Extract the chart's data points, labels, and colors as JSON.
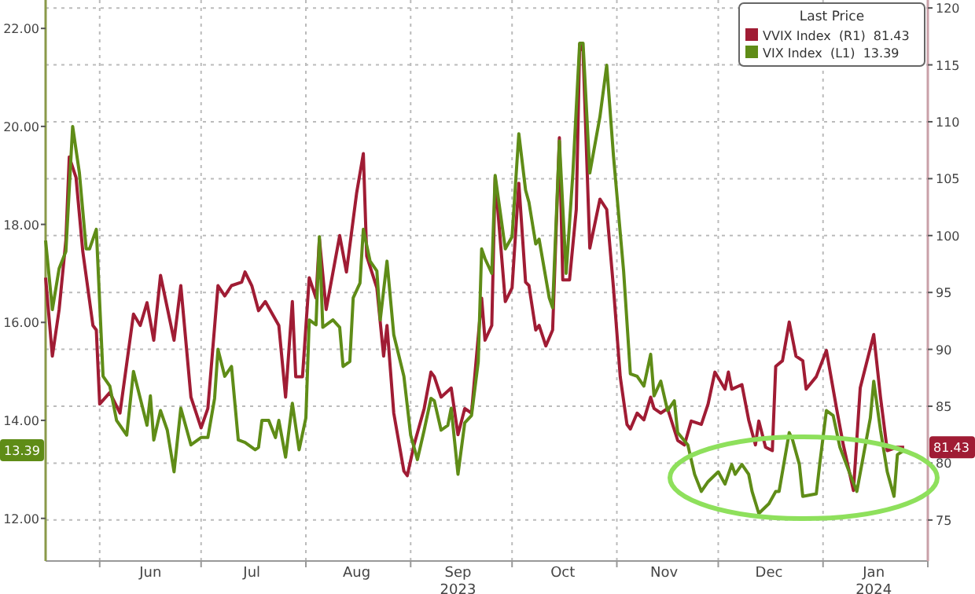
{
  "chart_data": {
    "type": "line",
    "legend_title": "Last Price",
    "legend": "top right",
    "grid": true,
    "xlim": [
      "2023-05-16",
      "2024-02-01"
    ],
    "xticks": [
      {
        "value": "2023-06-01",
        "label": null
      },
      {
        "value": "2023-06-16",
        "label": "Jun"
      },
      {
        "value": "2023-07-01",
        "label": null
      },
      {
        "value": "2023-07-16",
        "label": "Jul"
      },
      {
        "value": "2023-08-01",
        "label": null
      },
      {
        "value": "2023-08-16",
        "label": "Aug"
      },
      {
        "value": "2023-09-01",
        "label": null
      },
      {
        "value": "2023-09-15",
        "label": "Sep\n2023"
      },
      {
        "value": "2023-10-01",
        "label": null
      },
      {
        "value": "2023-10-16",
        "label": "Oct"
      },
      {
        "value": "2023-11-01",
        "label": null
      },
      {
        "value": "2023-11-15",
        "label": "Nov"
      },
      {
        "value": "2023-12-01",
        "label": null
      },
      {
        "value": "2023-12-16",
        "label": "Dec"
      },
      {
        "value": "2024-01-01",
        "label": null
      },
      {
        "value": "2024-01-16",
        "label": "Jan\n2024"
      },
      {
        "value": "2024-02-01",
        "label": null
      }
    ],
    "ylim": [
      11.13,
      22.58
    ],
    "yticks": [
      {
        "value": 12,
        "label": "12.00"
      },
      {
        "value": 14,
        "label": "14.00"
      },
      {
        "value": 16,
        "label": "16.00"
      },
      {
        "value": 18,
        "label": "18.00"
      },
      {
        "value": 20,
        "label": "20.00"
      },
      {
        "value": 22,
        "label": "22.00"
      }
    ],
    "y2lim": [
      71.4,
      120.7
    ],
    "y2ticks": [
      75,
      80,
      85,
      90,
      95,
      100,
      105,
      110,
      115,
      120
    ],
    "annotations": [
      "13.39",
      "81.43"
    ],
    "series": [
      {
        "name": "VVIX Index  (R1)  81.43",
        "color": "#a01c34",
        "axis": "y2",
        "x": [
          "2023-05-16",
          "2023-05-18",
          "2023-05-20",
          "2023-05-22",
          "2023-05-23",
          "2023-05-25",
          "2023-05-27",
          "2023-05-30",
          "2023-05-31",
          "2023-06-01",
          "2023-06-04",
          "2023-06-07",
          "2023-06-11",
          "2023-06-13",
          "2023-06-15",
          "2023-06-17",
          "2023-06-19",
          "2023-06-23",
          "2023-06-25",
          "2023-06-28",
          "2023-07-01",
          "2023-07-03",
          "2023-07-06",
          "2023-07-08",
          "2023-07-10",
          "2023-07-13",
          "2023-07-14",
          "2023-07-16",
          "2023-07-18",
          "2023-07-20",
          "2023-07-24",
          "2023-07-26",
          "2023-07-28",
          "2023-07-29",
          "2023-07-31",
          "2023-08-02",
          "2023-08-04",
          "2023-08-05",
          "2023-08-07",
          "2023-08-11",
          "2023-08-13",
          "2023-08-16",
          "2023-08-18",
          "2023-08-19",
          "2023-08-22",
          "2023-08-24",
          "2023-08-25",
          "2023-08-27",
          "2023-08-30",
          "2023-08-31",
          "2023-09-02",
          "2023-09-05",
          "2023-09-07",
          "2023-09-08",
          "2023-09-10",
          "2023-09-13",
          "2023-09-15",
          "2023-09-17",
          "2023-09-19",
          "2023-09-22",
          "2023-09-23",
          "2023-09-25",
          "2023-09-26",
          "2023-09-29",
          "2023-10-01",
          "2023-10-03",
          "2023-10-05",
          "2023-10-06",
          "2023-10-08",
          "2023-10-09",
          "2023-10-11",
          "2023-10-13",
          "2023-10-15",
          "2023-10-16",
          "2023-10-18",
          "2023-10-20",
          "2023-10-21",
          "2023-10-22",
          "2023-10-24",
          "2023-10-27",
          "2023-10-29",
          "2023-10-31",
          "2023-11-02",
          "2023-11-04",
          "2023-11-05",
          "2023-11-07",
          "2023-11-09",
          "2023-11-11",
          "2023-11-12",
          "2023-11-14",
          "2023-11-16",
          "2023-11-19",
          "2023-11-21",
          "2023-11-23",
          "2023-11-26",
          "2023-11-28",
          "2023-11-30",
          "2023-12-03",
          "2023-12-04",
          "2023-12-05",
          "2023-12-08",
          "2023-12-10",
          "2023-12-12",
          "2023-12-13",
          "2023-12-15",
          "2023-12-17",
          "2023-12-18",
          "2023-12-20",
          "2023-12-22",
          "2023-12-24",
          "2023-12-26",
          "2023-12-27",
          "2023-12-30",
          "2024-01-02",
          "2024-01-05",
          "2024-01-07",
          "2024-01-10",
          "2024-01-12",
          "2024-01-16",
          "2024-01-18",
          "2024-01-20",
          "2024-01-23",
          "2024-01-25"
        ],
        "values": [
          96.3,
          89.4,
          93.5,
          99.6,
          106.9,
          105.1,
          98.6,
          92.1,
          91.7,
          85.2,
          86.2,
          84.4,
          93.1,
          92.1,
          94.1,
          90.8,
          96.5,
          90.8,
          95.6,
          85.8,
          83.1,
          84.8,
          95.6,
          94.7,
          95.6,
          95.9,
          96.8,
          95.6,
          93.4,
          94.2,
          92.1,
          85.8,
          94.2,
          87.6,
          87.6,
          96.3,
          94.5,
          99.7,
          93.5,
          100.0,
          96.8,
          103.7,
          107.2,
          98.2,
          95.4,
          89.4,
          92.1,
          84.4,
          79.3,
          78.9,
          81.6,
          84.8,
          88.0,
          87.6,
          85.8,
          86.6,
          82.5,
          84.8,
          84.4,
          94.5,
          90.8,
          92.1,
          105.1,
          94.2,
          95.4,
          104.6,
          95.9,
          95.6,
          91.7,
          92.1,
          90.3,
          91.7,
          108.6,
          96.1,
          96.1,
          102.3,
          116.8,
          116.2,
          98.9,
          103.2,
          102.3,
          95.4,
          87.6,
          83.4,
          83.0,
          84.4,
          83.8,
          85.8,
          84.8,
          84.4,
          84.8,
          82.0,
          81.6,
          83.7,
          83.4,
          85.2,
          88.0,
          86.5,
          88.0,
          86.5,
          86.9,
          83.8,
          81.6,
          83.7,
          81.4,
          81.1,
          88.5,
          89.0,
          92.4,
          89.4,
          89.0,
          86.5,
          87.6,
          89.9,
          84.8,
          81.6,
          77.6,
          86.6,
          91.3,
          85.8,
          81.1,
          81.4,
          81.4
        ]
      },
      {
        "name": "VIX Index  (L1)  13.39",
        "color": "#5f8c17",
        "x": [
          "2023-05-16",
          "2023-05-18",
          "2023-05-20",
          "2023-05-22",
          "2023-05-24",
          "2023-05-26",
          "2023-05-28",
          "2023-05-29",
          "2023-05-31",
          "2023-06-02",
          "2023-06-04",
          "2023-06-06",
          "2023-06-09",
          "2023-06-11",
          "2023-06-15",
          "2023-06-16",
          "2023-06-17",
          "2023-06-19",
          "2023-06-21",
          "2023-06-23",
          "2023-06-25",
          "2023-06-28",
          "2023-07-01",
          "2023-07-03",
          "2023-07-05",
          "2023-07-06",
          "2023-07-08",
          "2023-07-10",
          "2023-07-12",
          "2023-07-14",
          "2023-07-17",
          "2023-07-18",
          "2023-07-19",
          "2023-07-21",
          "2023-07-23",
          "2023-07-24",
          "2023-07-26",
          "2023-07-28",
          "2023-07-30",
          "2023-08-01",
          "2023-08-02",
          "2023-08-04",
          "2023-08-05",
          "2023-08-06",
          "2023-08-09",
          "2023-08-11",
          "2023-08-12",
          "2023-08-14",
          "2023-08-15",
          "2023-08-17",
          "2023-08-18",
          "2023-08-20",
          "2023-08-22",
          "2023-08-23",
          "2023-08-25",
          "2023-08-27",
          "2023-08-30",
          "2023-09-01",
          "2023-09-03",
          "2023-09-05",
          "2023-09-07",
          "2023-09-08",
          "2023-09-10",
          "2023-09-12",
          "2023-09-13",
          "2023-09-15",
          "2023-09-17",
          "2023-09-19",
          "2023-09-21",
          "2023-09-22",
          "2023-09-23",
          "2023-09-25",
          "2023-09-26",
          "2023-09-29",
          "2023-10-01",
          "2023-10-03",
          "2023-10-05",
          "2023-10-06",
          "2023-10-08",
          "2023-10-09",
          "2023-10-12",
          "2023-10-13",
          "2023-10-15",
          "2023-10-17",
          "2023-10-19",
          "2023-10-21",
          "2023-10-22",
          "2023-10-24",
          "2023-10-27",
          "2023-10-29",
          "2023-10-31",
          "2023-11-03",
          "2023-11-05",
          "2023-11-07",
          "2023-11-09",
          "2023-11-11",
          "2023-11-12",
          "2023-11-14",
          "2023-11-16",
          "2023-11-18",
          "2023-11-19",
          "2023-11-22",
          "2023-11-24",
          "2023-11-26",
          "2023-11-28",
          "2023-12-01",
          "2023-12-03",
          "2023-12-05",
          "2023-12-06",
          "2023-12-08",
          "2023-12-10",
          "2023-12-11",
          "2023-12-13",
          "2023-12-16",
          "2023-12-18",
          "2023-12-19",
          "2023-12-22",
          "2023-12-23",
          "2023-12-25",
          "2023-12-26",
          "2023-12-30",
          "2023-12-31",
          "2024-01-02",
          "2024-01-04",
          "2024-01-06",
          "2024-01-09",
          "2024-01-11",
          "2024-01-13",
          "2024-01-15",
          "2024-01-16",
          "2024-01-18",
          "2024-01-20",
          "2024-01-22",
          "2024-01-23",
          "2024-01-25"
        ],
        "values": [
          17.67,
          16.26,
          17.1,
          17.45,
          20.0,
          19.05,
          17.5,
          17.5,
          17.9,
          14.9,
          14.7,
          14.0,
          13.7,
          15.0,
          13.9,
          14.5,
          13.6,
          14.2,
          13.8,
          12.95,
          14.25,
          13.5,
          13.65,
          13.65,
          14.45,
          15.45,
          14.9,
          15.1,
          13.6,
          13.55,
          13.4,
          13.45,
          14.0,
          14.0,
          13.65,
          14.0,
          13.25,
          14.35,
          13.4,
          14.05,
          16.05,
          15.95,
          17.75,
          15.9,
          16.05,
          15.9,
          15.1,
          15.2,
          16.5,
          16.8,
          17.9,
          17.25,
          17.05,
          16.05,
          17.25,
          15.75,
          14.9,
          13.7,
          13.2,
          13.8,
          14.45,
          14.4,
          13.8,
          13.9,
          14.25,
          12.9,
          13.95,
          14.1,
          15.2,
          17.5,
          17.3,
          17.0,
          19.0,
          17.5,
          17.75,
          19.85,
          18.7,
          18.45,
          17.6,
          17.7,
          16.5,
          16.3,
          19.7,
          17.0,
          19.05,
          21.7,
          21.7,
          19.05,
          20.2,
          21.25,
          19.4,
          17.05,
          14.95,
          14.9,
          14.7,
          15.35,
          14.5,
          14.8,
          14.2,
          14.4,
          13.75,
          13.5,
          12.9,
          12.55,
          12.75,
          12.95,
          12.7,
          13.1,
          12.9,
          13.1,
          12.9,
          12.55,
          12.1,
          12.3,
          12.55,
          12.55,
          13.75,
          13.6,
          13.1,
          12.45,
          12.5,
          13.1,
          14.2,
          14.1,
          13.45,
          12.9,
          12.55,
          13.3,
          14.05,
          14.8,
          13.8,
          12.95,
          12.45,
          13.3,
          13.39
        ]
      }
    ]
  }
}
